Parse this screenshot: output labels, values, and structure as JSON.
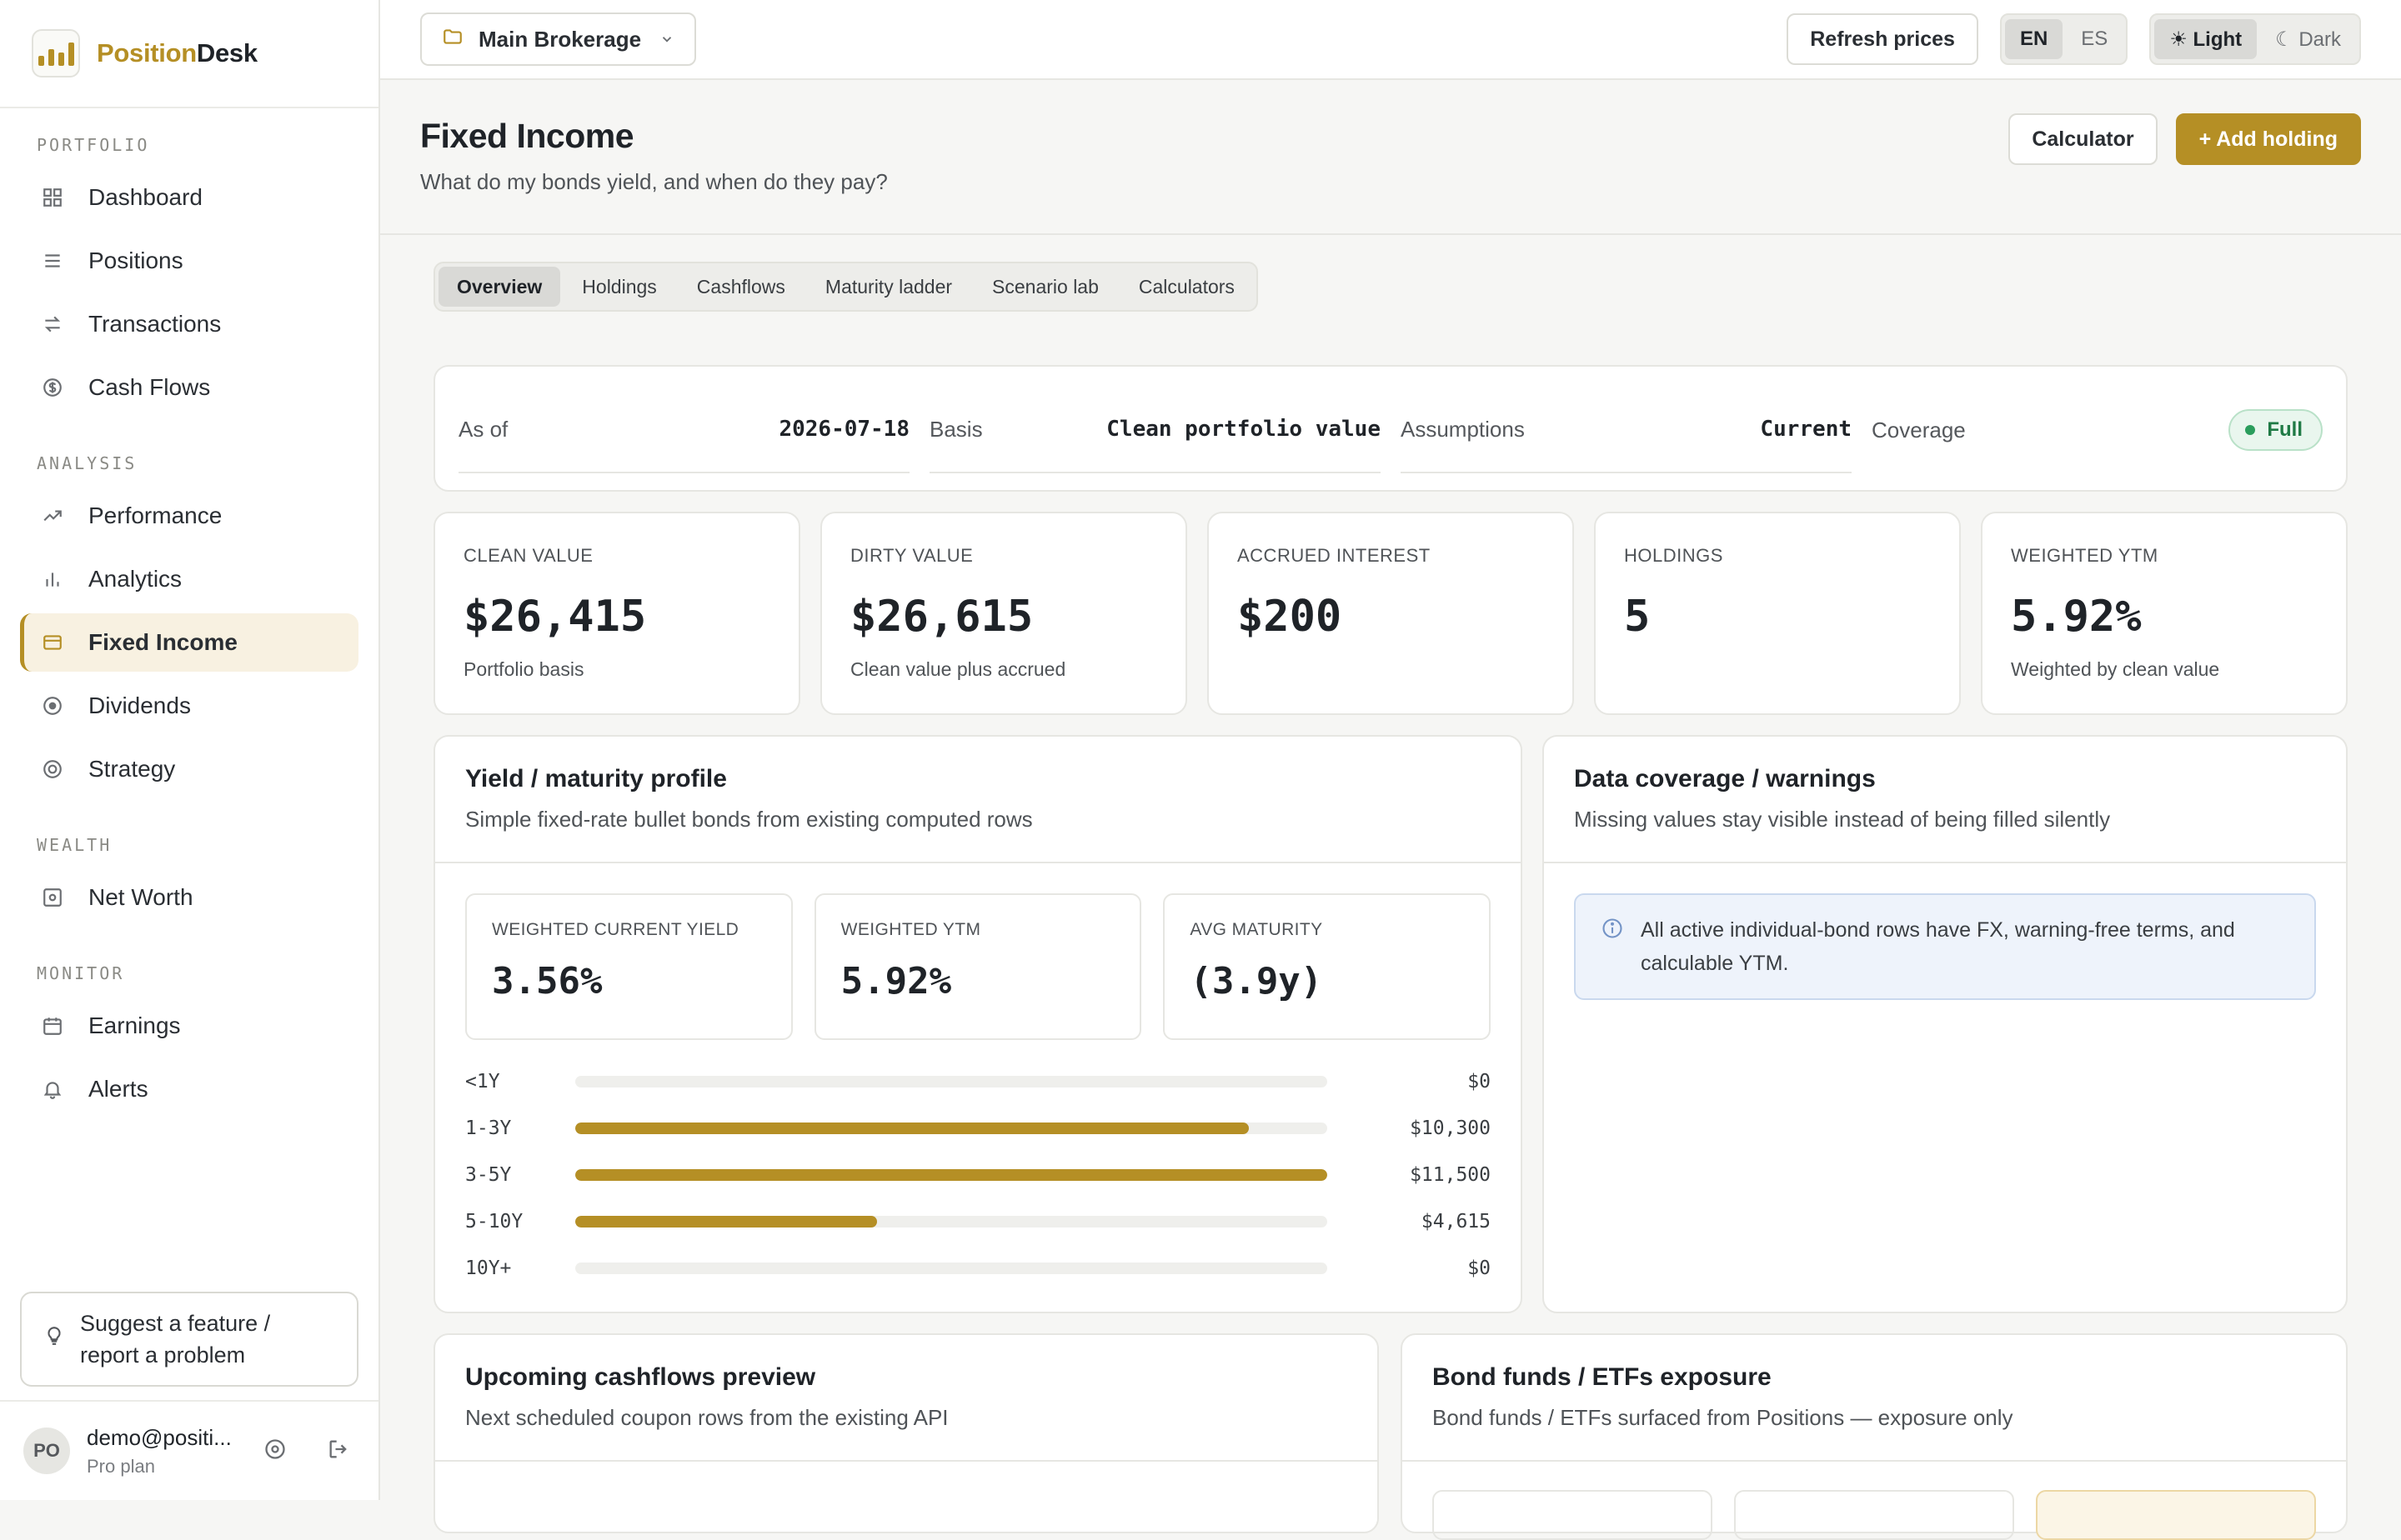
{
  "brand": {
    "name_accent": "Position",
    "name_rest": "Desk"
  },
  "sidebar": {
    "sections": [
      {
        "heading": "PORTFOLIO",
        "items": [
          {
            "label": "Dashboard",
            "icon": "grid-icon"
          },
          {
            "label": "Positions",
            "icon": "list-icon"
          },
          {
            "label": "Transactions",
            "icon": "arrows-icon"
          },
          {
            "label": "Cash Flows",
            "icon": "dollar-icon"
          }
        ]
      },
      {
        "heading": "ANALYSIS",
        "items": [
          {
            "label": "Performance",
            "icon": "trend-icon"
          },
          {
            "label": "Analytics",
            "icon": "bar-chart-icon"
          },
          {
            "label": "Fixed Income",
            "icon": "card-icon",
            "active": true
          },
          {
            "label": "Dividends",
            "icon": "target-icon"
          },
          {
            "label": "Strategy",
            "icon": "circle-icon"
          }
        ]
      },
      {
        "heading": "WEALTH",
        "items": [
          {
            "label": "Net Worth",
            "icon": "safe-icon"
          }
        ]
      },
      {
        "heading": "MONITOR",
        "items": [
          {
            "label": "Earnings",
            "icon": "calendar-icon"
          },
          {
            "label": "Alerts",
            "icon": "bell-icon"
          }
        ]
      }
    ],
    "suggest_label": "Suggest a feature / report a problem",
    "user": {
      "initials": "PO",
      "email": "demo@positi...",
      "plan": "Pro plan"
    }
  },
  "topbar": {
    "account": "Main Brokerage",
    "refresh_label": "Refresh prices",
    "lang": [
      "EN",
      "ES"
    ],
    "lang_selected": "EN",
    "theme_light": "☀ Light",
    "theme_dark": "☾ Dark"
  },
  "header": {
    "title": "Fixed Income",
    "subtitle": "What do my bonds yield, and when do they pay?",
    "calculator_label": "Calculator",
    "add_label": "+ Add holding"
  },
  "tabs": [
    "Overview",
    "Holdings",
    "Cashflows",
    "Maturity ladder",
    "Scenario lab",
    "Calculators"
  ],
  "tab_selected": "Overview",
  "asof": {
    "as_of_label": "As of",
    "as_of_value": "2026-07-18",
    "basis_label": "Basis",
    "basis_value": "Clean portfolio value",
    "assumptions_label": "Assumptions",
    "assumptions_value": "Current",
    "coverage_label": "Coverage",
    "coverage_value": "Full"
  },
  "kpis": [
    {
      "label": "CLEAN VALUE",
      "value": "$26,415",
      "sub": "Portfolio basis"
    },
    {
      "label": "DIRTY VALUE",
      "value": "$26,615",
      "sub": "Clean value plus accrued"
    },
    {
      "label": "ACCRUED INTEREST",
      "value": "$200",
      "sub": ""
    },
    {
      "label": "HOLDINGS",
      "value": "5",
      "sub": ""
    },
    {
      "label": "WEIGHTED YTM",
      "value": "5.92%",
      "sub": "Weighted by clean value"
    }
  ],
  "yield_panel": {
    "title": "Yield / maturity profile",
    "subtitle": "Simple fixed-rate bullet bonds from existing computed rows",
    "stats": [
      {
        "label": "WEIGHTED CURRENT YIELD",
        "value": "3.56%"
      },
      {
        "label": "WEIGHTED YTM",
        "value": "5.92%"
      },
      {
        "label": "AVG MATURITY",
        "value": "(3.9y)"
      }
    ],
    "ladder": [
      {
        "bucket": "<1Y",
        "value": "$0",
        "fraction": 0
      },
      {
        "bucket": "1-3Y",
        "value": "$10,300",
        "fraction": 0.896
      },
      {
        "bucket": "3-5Y",
        "value": "$11,500",
        "fraction": 1.0
      },
      {
        "bucket": "5-10Y",
        "value": "$4,615",
        "fraction": 0.401
      },
      {
        "bucket": "10Y+",
        "value": "$0",
        "fraction": 0
      }
    ]
  },
  "coverage_panel": {
    "title": "Data coverage / warnings",
    "subtitle": "Missing values stay visible instead of being filled silently",
    "info": "All active individual-bond rows have FX, warning-free terms, and calculable YTM."
  },
  "cash_panel": {
    "title": "Upcoming cashflows preview",
    "subtitle": "Next scheduled coupon rows from the existing API"
  },
  "etf_panel": {
    "title": "Bond funds / ETFs exposure",
    "subtitle": "Bond funds / ETFs surfaced from Positions — exposure only"
  },
  "colors": {
    "accent": "#b58f25",
    "success": "#2a9d5c",
    "info_bg": "#eef3fb"
  }
}
